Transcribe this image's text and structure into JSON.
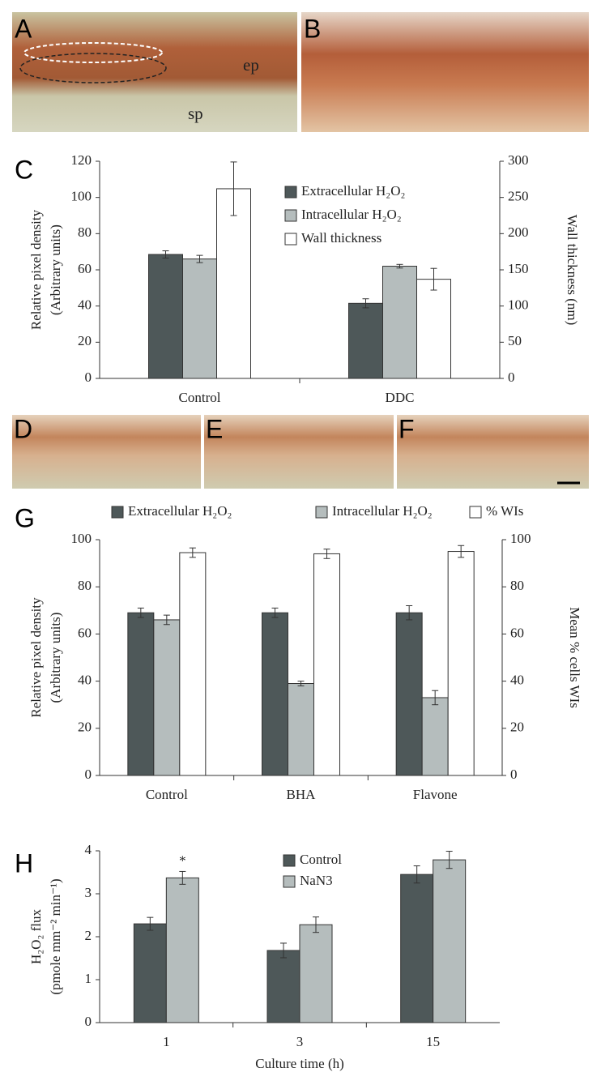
{
  "panels": [
    {
      "label": "A",
      "annotations": [
        "ep",
        "sp"
      ]
    },
    {
      "label": "B"
    },
    {
      "label": "D"
    },
    {
      "label": "E"
    },
    {
      "label": "F"
    }
  ],
  "chart_data": [
    {
      "type": "bar",
      "panel": "C",
      "ylabel": [
        "Relative pixel density",
        "(Arbitrary units)"
      ],
      "y2label": "Wall thickness (nm)",
      "categories": [
        "Control",
        "DDC"
      ],
      "ylim": [
        0,
        120
      ],
      "yticks": [
        0,
        20,
        40,
        60,
        80,
        100,
        120
      ],
      "y2lim": [
        0,
        300
      ],
      "y2ticks": [
        0,
        50,
        100,
        150,
        200,
        250,
        300
      ],
      "legend": "upper center",
      "series": [
        {
          "name": "Extracellular H₂O₂",
          "color": "#4e5859",
          "values": [
            68.5,
            41.5
          ],
          "errors": [
            2,
            2.5
          ]
        },
        {
          "name": "Intracellular H₂O₂",
          "color": "#b5bdbd",
          "values": [
            66,
            62
          ],
          "errors": [
            2,
            1
          ]
        },
        {
          "name": "Wall thickness",
          "color": "#ffffff",
          "axis": "y2",
          "values": [
            262,
            137
          ],
          "errors": [
            37,
            15
          ]
        }
      ]
    },
    {
      "type": "bar",
      "panel": "G",
      "ylabel": [
        "Relative pixel density",
        "(Arbitrary units)"
      ],
      "y2label": "Mean % cells WIs",
      "categories": [
        "Control",
        "BHA",
        "Flavone"
      ],
      "ylim": [
        0,
        100
      ],
      "yticks": [
        0,
        20,
        40,
        60,
        80,
        100
      ],
      "y2lim": [
        0,
        100
      ],
      "y2ticks": [
        0,
        20,
        40,
        60,
        80,
        100
      ],
      "legend": "top",
      "series": [
        {
          "name": "Extracellular H₂O₂",
          "color": "#4e5859",
          "values": [
            69,
            69,
            69
          ],
          "errors": [
            2,
            2,
            3
          ]
        },
        {
          "name": "Intracellular H₂O₂",
          "color": "#b5bdbd",
          "values": [
            66,
            39,
            33
          ],
          "errors": [
            2,
            1,
            3
          ]
        },
        {
          "name": "% WIs",
          "color": "#ffffff",
          "axis": "y2",
          "values": [
            94.5,
            94,
            95
          ],
          "errors": [
            2,
            2,
            2.5
          ]
        }
      ]
    },
    {
      "type": "bar",
      "panel": "H",
      "ylabel": [
        "H₂O₂ flux",
        "(pmole mm⁻² min⁻¹)"
      ],
      "xlabel": "Culture time (h)",
      "categories": [
        "1",
        "3",
        "15"
      ],
      "ylim": [
        0,
        4
      ],
      "yticks": [
        0,
        1,
        2,
        3,
        4
      ],
      "legend": "upper center",
      "annotation": "*",
      "series": [
        {
          "name": "Control",
          "color": "#4e5859",
          "values": [
            2.3,
            1.68,
            3.45
          ],
          "errors": [
            0.15,
            0.17,
            0.2
          ]
        },
        {
          "name": "NaN3",
          "color": "#b5bdbd",
          "values": [
            3.37,
            2.28,
            3.79
          ],
          "errors": [
            0.15,
            0.18,
            0.2
          ]
        }
      ]
    }
  ]
}
